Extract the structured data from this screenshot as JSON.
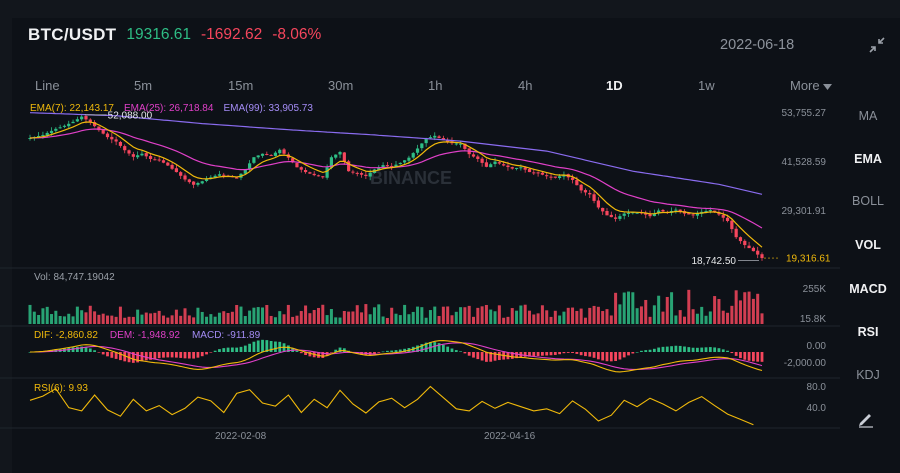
{
  "header": {
    "pair": "BTC/USDT",
    "price": "19316.61",
    "change": "-1692.62",
    "change_pct": "-8.06%",
    "date": "2022-06-18"
  },
  "colors": {
    "up": "#2ebd85",
    "down": "#f6465d",
    "ema7": "#f0b90b",
    "ema25": "#e040c8",
    "ema99": "#8a6cf0",
    "background": "#0d1117"
  },
  "icons": {
    "shrink": "shrink-arrows-icon",
    "draw": "pencil-draw-icon",
    "more": "caret-down-icon"
  },
  "intervals": [
    "Line",
    "5m",
    "15m",
    "30m",
    "1h",
    "4h",
    "1D",
    "1w",
    "More"
  ],
  "active_interval": "1D",
  "indicators": [
    "MA",
    "EMA",
    "BOLL",
    "VOL",
    "MACD",
    "RSI",
    "KDJ"
  ],
  "active_indicators": [
    "EMA",
    "VOL",
    "MACD",
    "RSI"
  ],
  "ema_legend": {
    "ema7": "EMA(7): 22,143.17",
    "ema25": "EMA(25): 26,718.84",
    "ema99": "EMA(99): 33,905.73"
  },
  "price_axis": [
    "53,755.27",
    "41,528.59",
    "29,301.91"
  ],
  "high_marker": "52,088.00",
  "low_marker": "18,742.50",
  "last_price_tag": "19,316.61",
  "watermark": "BINANCE",
  "volume": {
    "label": "Vol: 84,747.19042",
    "axis": [
      "255K",
      "15.8K"
    ]
  },
  "macd": {
    "dif": "DIF: -2,860.82",
    "dem": "DEM: -1,948.92",
    "macd": "MACD: -911.89",
    "axis": [
      "0.00",
      "-2,000.00"
    ]
  },
  "rsi": {
    "label": "RSI(6): 9.93",
    "axis": [
      "80.0",
      "40.0"
    ]
  },
  "x_axis": [
    "2022-02-08",
    "2022-04-16"
  ],
  "chart_data": {
    "type": "candlestick",
    "symbol": "BTC/USDT",
    "interval": "1D",
    "x_labels": [
      "2022-02-08",
      "2022-04-16"
    ],
    "price_range": [
      17500,
      55500
    ],
    "price_ticks": [
      53755.27,
      41528.59,
      29301.91
    ],
    "high": 52088.0,
    "low": 18742.5,
    "last": 19316.61,
    "close_path": [
      [
        0,
        46800
      ],
      [
        3,
        47500
      ],
      [
        6,
        48900
      ],
      [
        8,
        49600
      ],
      [
        10,
        50500
      ],
      [
        12,
        51700
      ],
      [
        14,
        50400
      ],
      [
        16,
        48600
      ],
      [
        18,
        47000
      ],
      [
        20,
        46000
      ],
      [
        22,
        44000
      ],
      [
        24,
        42500
      ],
      [
        26,
        43200
      ],
      [
        28,
        42000
      ],
      [
        30,
        41800
      ],
      [
        32,
        40500
      ],
      [
        34,
        39000
      ],
      [
        36,
        37300
      ],
      [
        38,
        36100
      ],
      [
        40,
        36900
      ],
      [
        42,
        37800
      ],
      [
        44,
        38500
      ],
      [
        46,
        38100
      ],
      [
        48,
        37600
      ],
      [
        50,
        39600
      ],
      [
        52,
        42400
      ],
      [
        54,
        43200
      ],
      [
        56,
        42800
      ],
      [
        58,
        44100
      ],
      [
        60,
        42300
      ],
      [
        62,
        40100
      ],
      [
        64,
        39000
      ],
      [
        66,
        38300
      ],
      [
        68,
        37800
      ],
      [
        70,
        42400
      ],
      [
        72,
        43600
      ],
      [
        74,
        39200
      ],
      [
        76,
        38700
      ],
      [
        78,
        38100
      ],
      [
        80,
        39600
      ],
      [
        82,
        40600
      ],
      [
        84,
        40300
      ],
      [
        86,
        41100
      ],
      [
        88,
        42300
      ],
      [
        90,
        44400
      ],
      [
        92,
        46700
      ],
      [
        94,
        47300
      ],
      [
        96,
        46300
      ],
      [
        98,
        45600
      ],
      [
        100,
        45500
      ],
      [
        102,
        43100
      ],
      [
        104,
        42000
      ],
      [
        106,
        40200
      ],
      [
        108,
        41400
      ],
      [
        110,
        40500
      ],
      [
        112,
        39800
      ],
      [
        114,
        40100
      ],
      [
        116,
        39000
      ],
      [
        118,
        38700
      ],
      [
        120,
        38100
      ],
      [
        122,
        37700
      ],
      [
        124,
        38400
      ],
      [
        126,
        37200
      ],
      [
        128,
        34800
      ],
      [
        130,
        33900
      ],
      [
        132,
        30900
      ],
      [
        134,
        29100
      ],
      [
        136,
        28300
      ],
      [
        138,
        29500
      ],
      [
        140,
        29800
      ],
      [
        142,
        29600
      ],
      [
        144,
        28900
      ],
      [
        146,
        30200
      ],
      [
        148,
        29800
      ],
      [
        150,
        30400
      ],
      [
        152,
        29500
      ],
      [
        154,
        29100
      ],
      [
        156,
        29900
      ],
      [
        158,
        30300
      ],
      [
        160,
        29300
      ],
      [
        162,
        27800
      ],
      [
        164,
        24100
      ],
      [
        166,
        22300
      ],
      [
        168,
        20900
      ],
      [
        170,
        19316.61
      ]
    ],
    "ema99_path": [
      [
        0,
        52600
      ],
      [
        20,
        51900
      ],
      [
        40,
        50100
      ],
      [
        60,
        48700
      ],
      [
        80,
        47500
      ],
      [
        100,
        46100
      ],
      [
        120,
        43800
      ],
      [
        140,
        39200
      ],
      [
        160,
        36200
      ],
      [
        170,
        33905.73
      ]
    ],
    "rsi_path": [
      [
        0,
        56
      ],
      [
        3,
        64
      ],
      [
        6,
        78
      ],
      [
        9,
        42
      ],
      [
        12,
        36
      ],
      [
        15,
        66
      ],
      [
        18,
        38
      ],
      [
        21,
        26
      ],
      [
        24,
        58
      ],
      [
        27,
        36
      ],
      [
        30,
        46
      ],
      [
        33,
        29
      ],
      [
        36,
        41
      ],
      [
        39,
        62
      ],
      [
        42,
        55
      ],
      [
        45,
        33
      ],
      [
        48,
        69
      ],
      [
        51,
        76
      ],
      [
        54,
        51
      ],
      [
        57,
        45
      ],
      [
        60,
        66
      ],
      [
        63,
        33
      ],
      [
        66,
        58
      ],
      [
        69,
        42
      ],
      [
        72,
        75
      ],
      [
        75,
        49
      ],
      [
        78,
        32
      ],
      [
        81,
        53
      ],
      [
        84,
        60
      ],
      [
        87,
        42
      ],
      [
        90,
        58
      ],
      [
        93,
        82
      ],
      [
        96,
        61
      ],
      [
        99,
        40
      ],
      [
        102,
        36
      ],
      [
        105,
        54
      ],
      [
        108,
        41
      ],
      [
        111,
        52
      ],
      [
        114,
        44
      ],
      [
        117,
        36
      ],
      [
        120,
        40
      ],
      [
        123,
        31
      ],
      [
        126,
        55
      ],
      [
        129,
        39
      ],
      [
        132,
        17
      ],
      [
        135,
        28
      ],
      [
        138,
        56
      ],
      [
        141,
        44
      ],
      [
        144,
        60
      ],
      [
        147,
        49
      ],
      [
        150,
        36
      ],
      [
        153,
        52
      ],
      [
        156,
        63
      ],
      [
        159,
        46
      ],
      [
        162,
        30
      ],
      [
        165,
        20
      ],
      [
        168,
        9.93
      ]
    ]
  }
}
